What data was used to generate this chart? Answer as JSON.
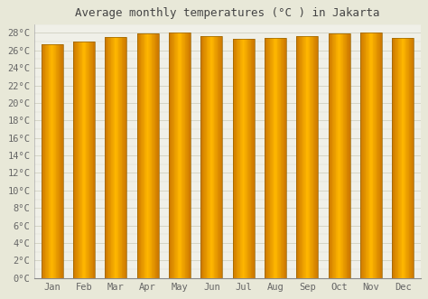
{
  "title": "Average monthly temperatures (°C ) in Jakarta",
  "months": [
    "Jan",
    "Feb",
    "Mar",
    "Apr",
    "May",
    "Jun",
    "Jul",
    "Aug",
    "Sep",
    "Oct",
    "Nov",
    "Dec"
  ],
  "temperatures": [
    26.7,
    27.0,
    27.5,
    27.9,
    28.0,
    27.6,
    27.3,
    27.4,
    27.6,
    27.9,
    28.0,
    27.4
  ],
  "bar_color_center": "#FFB800",
  "bar_color_edge": "#CC7700",
  "background_color": "#e8e8d8",
  "plot_bg_color": "#f0f0e8",
  "grid_color": "#d0d0c0",
  "ylim": [
    0,
    29
  ],
  "ytick_step": 2,
  "title_fontsize": 9,
  "tick_fontsize": 7.5,
  "title_color": "#444444",
  "tick_color": "#666666"
}
